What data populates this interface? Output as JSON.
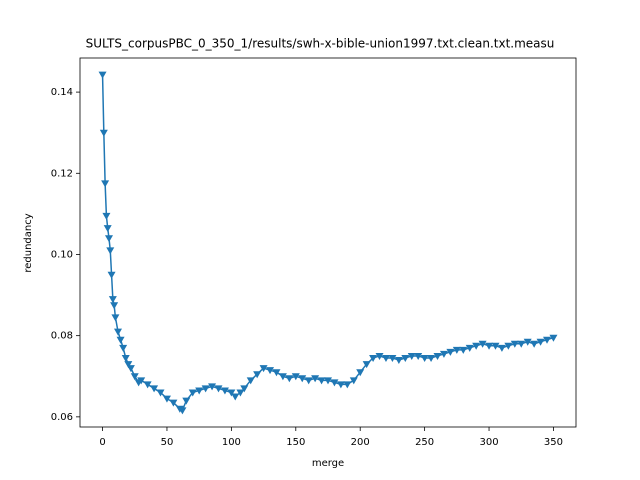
{
  "chart_data": {
    "type": "line",
    "title": "SULTS_corpusPBC_0_350_1/results/swh-x-bible-union1997.txt.clean.txt.measu",
    "x_label": "merge",
    "y_label": "redundancy",
    "xlim": [
      -17.5,
      367.5
    ],
    "ylim": [
      0.0575,
      0.1484
    ],
    "xticks": [
      0,
      50,
      100,
      150,
      200,
      250,
      300,
      350
    ],
    "yticks": [
      0.06,
      0.08,
      {
        "value": 0.1,
        "label": "0.10"
      },
      0.12,
      0.14
    ],
    "x": [
      0,
      1,
      2,
      3,
      4,
      5,
      6,
      7,
      8,
      9,
      10,
      12,
      14,
      16,
      18,
      20,
      22,
      25,
      28,
      30,
      35,
      40,
      45,
      50,
      55,
      60,
      62,
      65,
      70,
      75,
      80,
      85,
      90,
      95,
      100,
      103,
      107,
      110,
      115,
      120,
      125,
      130,
      135,
      140,
      145,
      150,
      155,
      160,
      165,
      170,
      175,
      180,
      185,
      190,
      195,
      200,
      205,
      210,
      215,
      220,
      225,
      230,
      235,
      240,
      245,
      250,
      255,
      260,
      265,
      270,
      275,
      280,
      285,
      290,
      295,
      300,
      305,
      310,
      315,
      320,
      325,
      330,
      335,
      340,
      345,
      350
    ],
    "series": [
      {
        "color": "#1f77b4",
        "values": [
          0.1443,
          0.13,
          0.1175,
          0.1095,
          0.1065,
          0.104,
          0.101,
          0.095,
          0.089,
          0.0875,
          0.0845,
          0.081,
          0.079,
          0.077,
          0.0745,
          0.073,
          0.072,
          0.07,
          0.0685,
          0.069,
          0.068,
          0.067,
          0.066,
          0.0645,
          0.0635,
          0.062,
          0.0616,
          0.064,
          0.066,
          0.0665,
          0.067,
          0.0675,
          0.067,
          0.0665,
          0.066,
          0.065,
          0.066,
          0.067,
          0.069,
          0.0705,
          0.072,
          0.0715,
          0.071,
          0.07,
          0.0695,
          0.07,
          0.0695,
          0.069,
          0.0695,
          0.069,
          0.069,
          0.0685,
          0.068,
          0.068,
          0.069,
          0.071,
          0.073,
          0.0745,
          0.075,
          0.0745,
          0.0745,
          0.074,
          0.0745,
          0.075,
          0.075,
          0.0745,
          0.0745,
          0.075,
          0.0755,
          0.076,
          0.0765,
          0.0765,
          0.077,
          0.0775,
          0.078,
          0.0775,
          0.0775,
          0.077,
          0.0775,
          0.078,
          0.078,
          0.0785,
          0.078,
          0.0785,
          0.079,
          0.0795
        ]
      }
    ]
  }
}
